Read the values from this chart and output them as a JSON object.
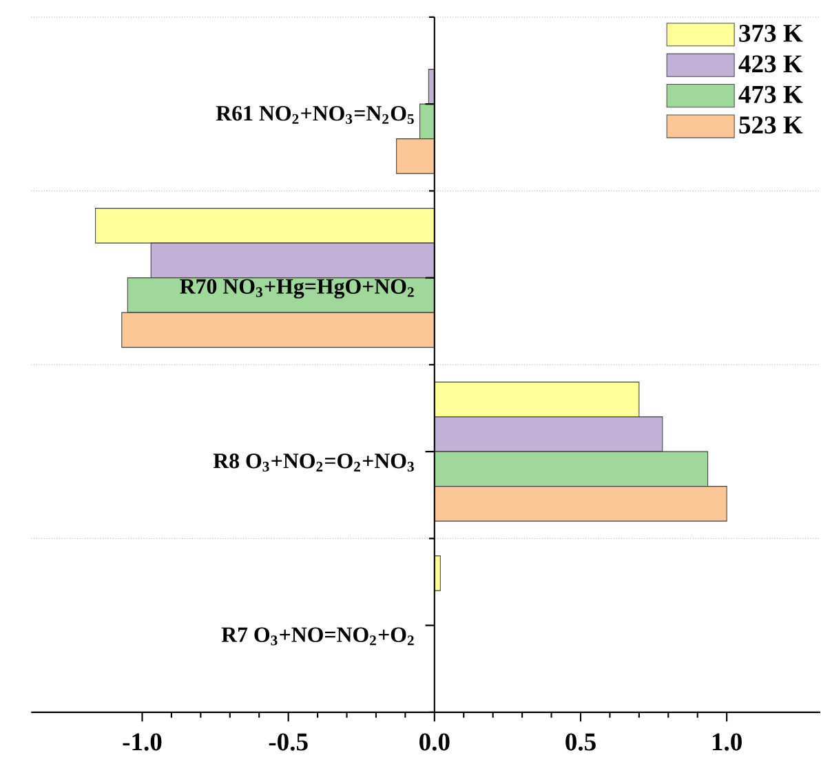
{
  "chart_data": {
    "type": "bar",
    "orientation": "horizontal",
    "categories": [
      "R61 NO$_{2}$+NO$_{3}$=N$_{2}$O$_{5}$",
      "R70 NO$_{3}$+Hg=HgO+NO$_{2}$",
      "R8 O$_{3}$+NO$_{2}$=O$_{2}$+NO$_{3}$",
      "R7 O$_{3}$+NO=NO$_{2}$+O$_{2}$"
    ],
    "series": [
      {
        "name": "373 K",
        "color": "#ffff99",
        "values": [
          null,
          -1.16,
          0.7,
          0.02
        ]
      },
      {
        "name": "423 K",
        "color": "#c2b1d7",
        "values": [
          -0.02,
          -0.97,
          0.78,
          null
        ]
      },
      {
        "name": "473 K",
        "color": "#9fd89a",
        "values": [
          -0.05,
          -1.05,
          0.935,
          null
        ]
      },
      {
        "name": "523 K",
        "color": "#fbc796",
        "values": [
          -0.13,
          -1.07,
          1.0,
          null
        ]
      }
    ],
    "xlim": [
      -1.38,
      1.32
    ],
    "xticks": [
      {
        "value": -1.0,
        "label": "-1.0"
      },
      {
        "value": -0.5,
        "label": "-0.5"
      },
      {
        "value": 0.0,
        "label": "0.0"
      },
      {
        "value": 0.5,
        "label": "0.5"
      },
      {
        "value": 1.0,
        "label": "1.0"
      }
    ],
    "grid": "y",
    "legend": "top right"
  }
}
